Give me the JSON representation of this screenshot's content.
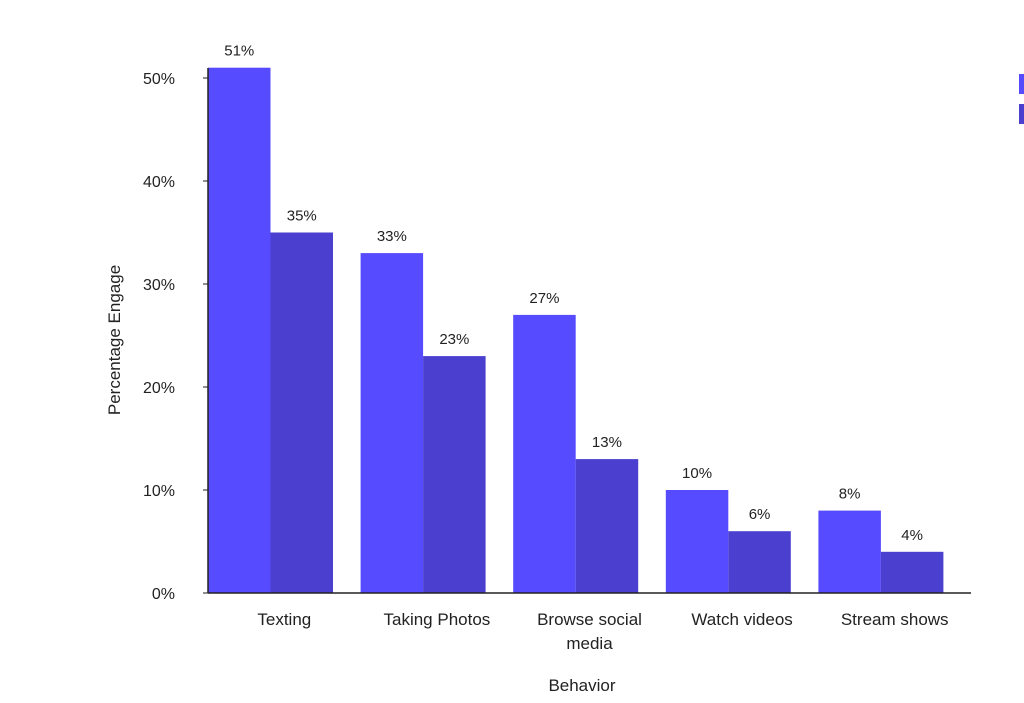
{
  "chart_data": {
    "type": "bar",
    "title": "",
    "xlabel": "Behavior",
    "ylabel": "Percentage Engage",
    "ylim": [
      0,
      51
    ],
    "yticks": [
      0,
      10,
      20,
      30,
      40,
      50
    ],
    "ytick_labels": [
      "0%",
      "10%",
      "20%",
      "30%",
      "40%",
      "50%"
    ],
    "categories": [
      "Texting",
      "Taking Photos",
      "Browse social media",
      "Watch videos",
      "Stream shows"
    ],
    "category_lines": [
      [
        "Texting"
      ],
      [
        "Taking Photos"
      ],
      [
        "Browse social",
        "media"
      ],
      [
        "Watch videos"
      ],
      [
        "Stream shows"
      ]
    ],
    "series": [
      {
        "name": "",
        "color": "#574bff",
        "values": [
          51,
          33,
          27,
          10,
          8
        ],
        "labels": [
          "51%",
          "33%",
          "27%",
          "10%",
          "8%"
        ]
      },
      {
        "name": "",
        "color": "#4a3fcf",
        "values": [
          35,
          23,
          13,
          6,
          4
        ],
        "labels": [
          "35%",
          "23%",
          "13%",
          "6%",
          "4%"
        ]
      }
    ],
    "grid": false,
    "legend": "top-right (cropped, no visible text)"
  }
}
